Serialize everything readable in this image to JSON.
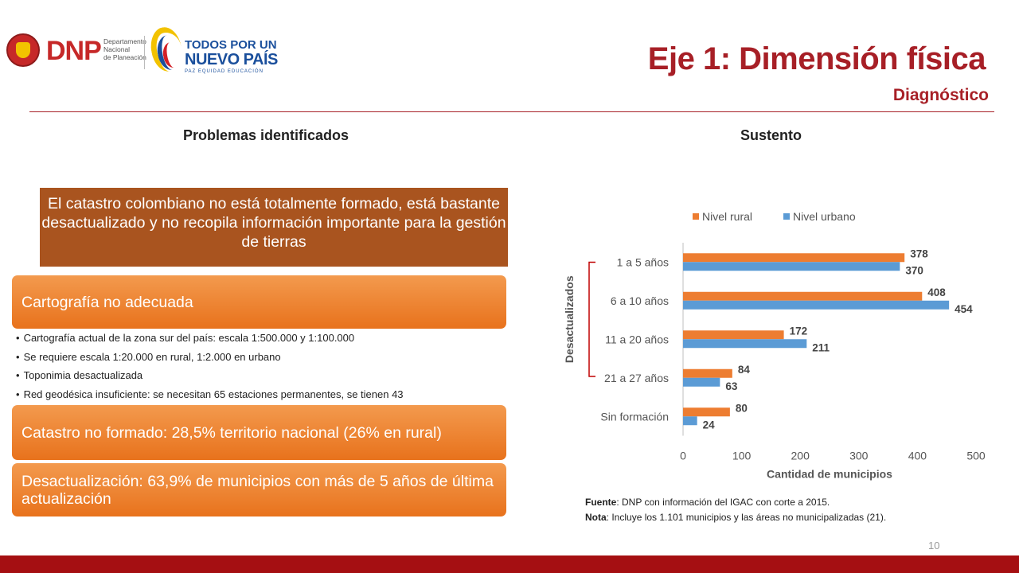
{
  "header": {
    "dnp_logo": {
      "name": "DNP",
      "subtitle_lines": [
        "Departamento",
        "Nacional",
        "de Planeación"
      ]
    },
    "gov_logo": {
      "line1": "TODOS POR UN",
      "line2": "NUEVO PAÍS",
      "line3": "PAZ   EQUIDAD   EDUCACIÓN"
    },
    "title": "Eje 1: Dimensión física",
    "subtitle": "Diagnóstico"
  },
  "columns": {
    "left_heading": "Problemas identificados",
    "right_heading": "Sustento"
  },
  "problem_statement": "El catastro colombiano no está totalmente formado, está bastante desactualizado y no recopila información importante para la gestión de tierras",
  "issues": [
    {
      "label": "Cartografía no adecuada"
    },
    {
      "label": "Catastro no formado: 28,5% territorio nacional (26% en rural)"
    },
    {
      "label": "Desactualización: 63,9% de municipios con más de 5 años de última actualización"
    }
  ],
  "cartografia_bullets": [
    "Cartografía actual de la zona sur del país: escala 1:500.000 y 1:100.000",
    "Se requiere escala 1:20.000 en rural, 1:2.000 en urbano",
    "Toponimia desactualizada",
    "Red geodésica insuficiente: se necesitan 65 estaciones permanentes, se tienen 43"
  ],
  "chart_data": {
    "type": "bar",
    "orientation": "horizontal",
    "categories": [
      "1 a 5 años",
      "6 a 10 años",
      "11 a 20 años",
      "21 a 27 años",
      "Sin formación"
    ],
    "series": [
      {
        "name": "Nivel rural",
        "values": [
          378,
          408,
          172,
          84,
          80
        ],
        "color": "#ed7d31"
      },
      {
        "name": "Nivel urbano",
        "values": [
          370,
          454,
          211,
          63,
          24
        ],
        "color": "#5b9bd5"
      }
    ],
    "xlabel": "Cantidad de municipios",
    "xlim": [
      0,
      500
    ],
    "xticks": [
      "0",
      "100",
      "200",
      "300",
      "400",
      "500"
    ],
    "bracket_label": "Desactualizados",
    "bracket_color": "#c00000",
    "legend_position": "top",
    "grid": false
  },
  "notes": {
    "source_label": "Fuente",
    "source_text": ": DNP con información del IGAC con corte a 2015.",
    "note_label": "Nota",
    "note_text": ": Incluye los 1.101 municipios y las áreas no municipalizadas (21)."
  },
  "page_number": "10",
  "colors": {
    "accent": "#a71f26",
    "box": "#a9541f",
    "orange": "#e8721c",
    "footer": "#a50f12"
  }
}
